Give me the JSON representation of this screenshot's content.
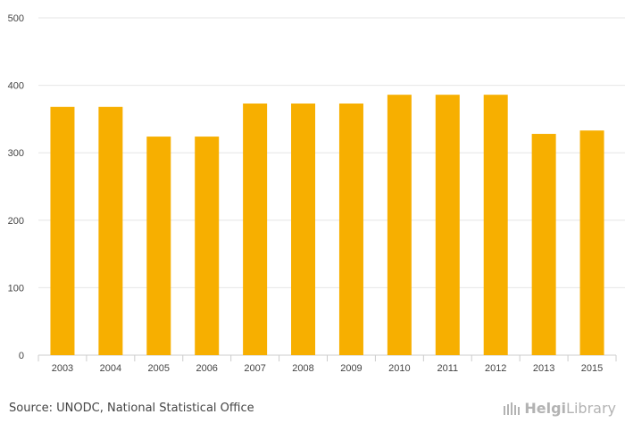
{
  "chart_data": {
    "type": "bar",
    "categories": [
      "2003",
      "2004",
      "2005",
      "2006",
      "2007",
      "2008",
      "2009",
      "2010",
      "2011",
      "2012",
      "2013",
      "2015"
    ],
    "values": [
      368,
      368,
      324,
      324,
      373,
      373,
      373,
      386,
      386,
      386,
      328,
      333
    ],
    "ylim": [
      0,
      500
    ],
    "yticks": [
      0,
      100,
      200,
      300,
      400,
      500
    ],
    "grid": true,
    "bar_color": "#F7AF00",
    "grid_color": "#e6e6e6",
    "axis_color": "#cccccc"
  },
  "footer": {
    "source": "Source: UNODC, National Statistical Office",
    "logo_name": "Helgi",
    "logo_suffix": "Library"
  }
}
